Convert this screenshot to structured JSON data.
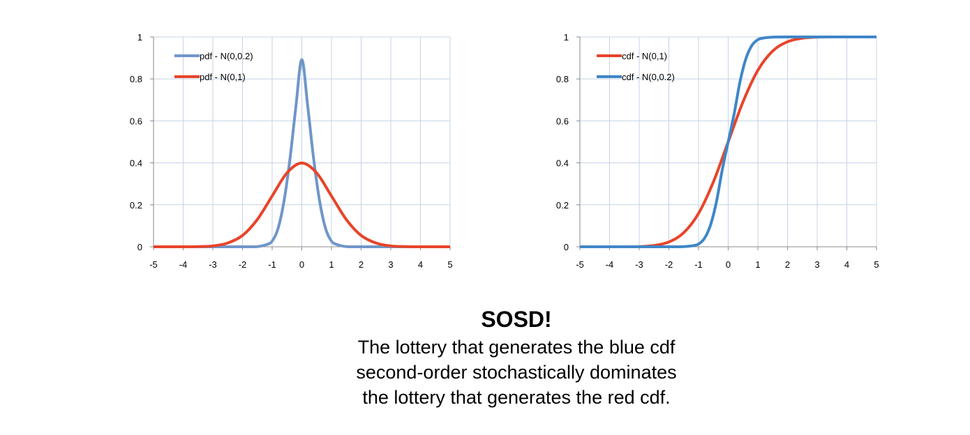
{
  "chart_data": [
    {
      "type": "line",
      "x_ticks": [
        "-5",
        "-4",
        "-3",
        "-2",
        "-1",
        "0",
        "1",
        "2",
        "3",
        "4",
        "5"
      ],
      "y_ticks": [
        "0",
        "0.2",
        "0.4",
        "0.6",
        "0.8",
        "1"
      ],
      "xlim": [
        -5,
        5
      ],
      "ylim": [
        0,
        1
      ],
      "grid": true,
      "legend_position": "top-left",
      "series": [
        {
          "name": "pdf - N(0,0.2)",
          "color": "#6f96c9",
          "x": [
            -5,
            -2,
            -1.5,
            -1.2,
            -1,
            -0.8,
            -0.6,
            -0.4,
            -0.2,
            0,
            0.2,
            0.4,
            0.6,
            0.8,
            1,
            1.2,
            1.5,
            2,
            5
          ],
          "y": [
            0,
            0,
            0.001,
            0.01,
            0.027,
            0.088,
            0.218,
            0.418,
            0.668,
            0.892,
            0.668,
            0.418,
            0.218,
            0.088,
            0.027,
            0.01,
            0.001,
            0,
            0
          ]
        },
        {
          "name": "pdf  - N(0,1)",
          "color": "#e8442a",
          "x": [
            -5,
            -4,
            -3.5,
            -3,
            -2.5,
            -2,
            -1.5,
            -1,
            -0.5,
            0,
            0.5,
            1,
            1.5,
            2,
            2.5,
            3,
            3.5,
            4,
            5
          ],
          "y": [
            0,
            0,
            0.001,
            0.004,
            0.018,
            0.054,
            0.13,
            0.242,
            0.352,
            0.399,
            0.352,
            0.242,
            0.13,
            0.054,
            0.018,
            0.004,
            0.001,
            0,
            0
          ]
        }
      ]
    },
    {
      "type": "line",
      "x_ticks": [
        "-5",
        "-4",
        "-3",
        "-2",
        "-1",
        "0",
        "1",
        "2",
        "3",
        "4",
        "5"
      ],
      "y_ticks": [
        "0",
        "0.2",
        "0.4",
        "0.6",
        "0.8",
        "1"
      ],
      "xlim": [
        -5,
        5
      ],
      "ylim": [
        0,
        1
      ],
      "grid": true,
      "legend_position": "top-left",
      "series": [
        {
          "name": "cdf - N(0,1)",
          "color": "#e8442a",
          "x": [
            -5,
            -4,
            -3.5,
            -3,
            -2.5,
            -2,
            -1.5,
            -1,
            -0.5,
            0,
            0.5,
            1,
            1.5,
            2,
            2.5,
            3,
            3.5,
            4,
            5
          ],
          "y": [
            0,
            0,
            0,
            0.001,
            0.006,
            0.023,
            0.067,
            0.159,
            0.309,
            0.5,
            0.691,
            0.841,
            0.933,
            0.977,
            0.994,
            0.999,
            1,
            1,
            1
          ]
        },
        {
          "name": "cdf - N(0,0.2)",
          "color": "#3f86c8",
          "x": [
            -5,
            -2,
            -1.5,
            -1.2,
            -1,
            -0.8,
            -0.6,
            -0.4,
            -0.2,
            0,
            0.2,
            0.4,
            0.6,
            0.8,
            1,
            1.2,
            1.5,
            2,
            5
          ],
          "y": [
            0,
            0,
            0.001,
            0.005,
            0.013,
            0.04,
            0.102,
            0.212,
            0.367,
            0.5,
            0.633,
            0.788,
            0.898,
            0.96,
            0.987,
            0.995,
            0.999,
            1,
            1
          ]
        }
      ]
    }
  ],
  "caption": {
    "title": "SOSD!",
    "lines": [
      "The lottery that generates the blue cdf",
      "second-order stochastically dominates",
      "the lottery that generates the red cdf."
    ]
  }
}
